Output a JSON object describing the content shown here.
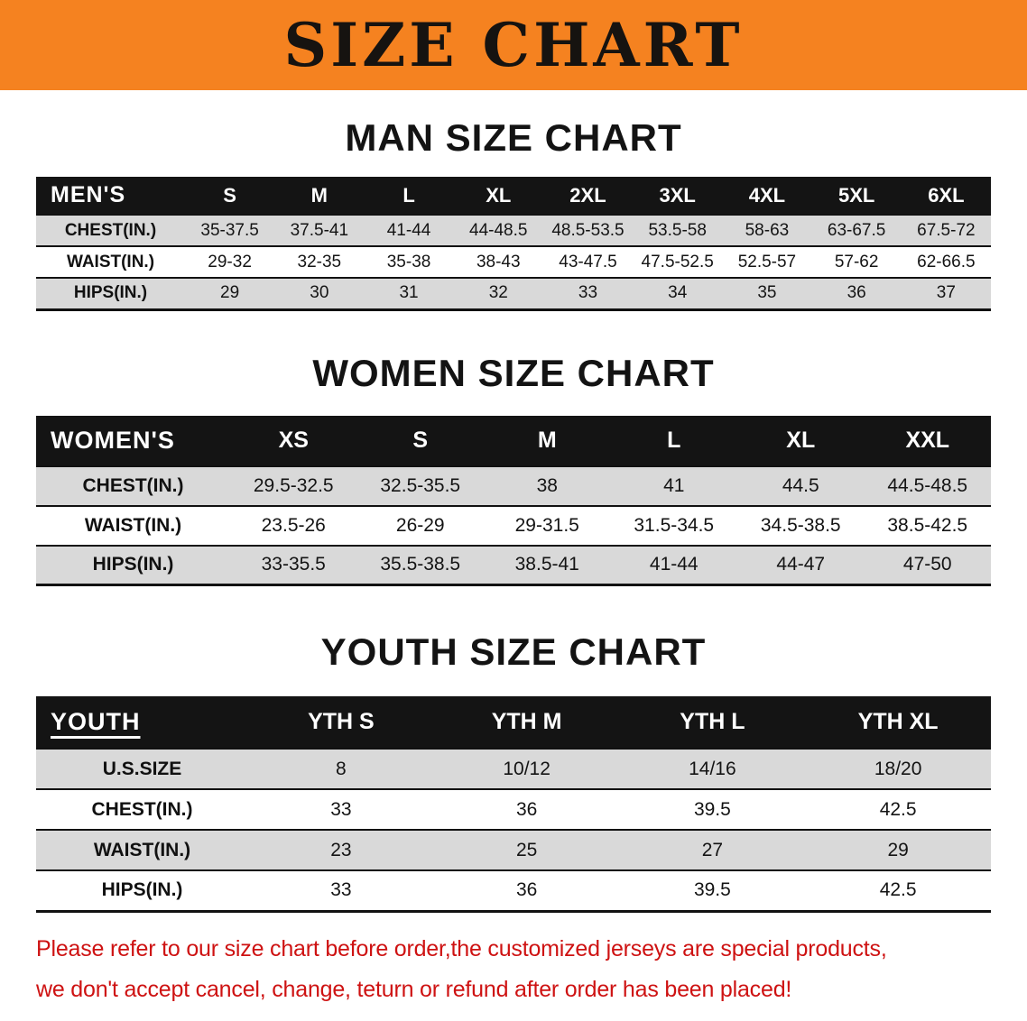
{
  "banner": {
    "title": "SIZE CHART"
  },
  "men": {
    "heading": "MAN SIZE CHART",
    "table": {
      "header": [
        "MEN'S",
        "S",
        "M",
        "L",
        "XL",
        "2XL",
        "3XL",
        "4XL",
        "5XL",
        "6XL"
      ],
      "rows": [
        [
          "CHEST(IN.)",
          "35-37.5",
          "37.5-41",
          "41-44",
          "44-48.5",
          "48.5-53.5",
          "53.5-58",
          "58-63",
          "63-67.5",
          "67.5-72"
        ],
        [
          "WAIST(IN.)",
          "29-32",
          "32-35",
          "35-38",
          "38-43",
          "43-47.5",
          "47.5-52.5",
          "52.5-57",
          "57-62",
          "62-66.5"
        ],
        [
          "HIPS(IN.)",
          "29",
          "30",
          "31",
          "32",
          "33",
          "34",
          "35",
          "36",
          "37"
        ]
      ]
    }
  },
  "women": {
    "heading": "WOMEN SIZE CHART",
    "table": {
      "header": [
        "WOMEN'S",
        "XS",
        "S",
        "M",
        "L",
        "XL",
        "XXL"
      ],
      "rows": [
        [
          "CHEST(IN.)",
          "29.5-32.5",
          "32.5-35.5",
          "38",
          "41",
          "44.5",
          "44.5-48.5"
        ],
        [
          "WAIST(IN.)",
          "23.5-26",
          "26-29",
          "29-31.5",
          "31.5-34.5",
          "34.5-38.5",
          "38.5-42.5"
        ],
        [
          "HIPS(IN.)",
          "33-35.5",
          "35.5-38.5",
          "38.5-41",
          "41-44",
          "44-47",
          "47-50"
        ]
      ]
    }
  },
  "youth": {
    "heading": "YOUTH SIZE CHART",
    "table": {
      "header": [
        "YOUTH",
        "YTH S",
        "YTH M",
        "YTH L",
        "YTH XL"
      ],
      "rows": [
        [
          "U.S.SIZE",
          "8",
          "10/12",
          "14/16",
          "18/20"
        ],
        [
          "CHEST(IN.)",
          "33",
          "36",
          "39.5",
          "42.5"
        ],
        [
          "WAIST(IN.)",
          "23",
          "25",
          "27",
          "29"
        ],
        [
          "HIPS(IN.)",
          "33",
          "36",
          "39.5",
          "42.5"
        ]
      ]
    }
  },
  "footer": {
    "line1": "Please refer to our size chart before order,the customized jerseys are special products,",
    "line2": "we don't accept cancel, change, teturn or refund after order has been placed!"
  },
  "colors": {
    "banner_bg": "#F58220",
    "header_bg": "#141414",
    "row_alt_bg": "#D9D9D9",
    "footer_text": "#CE1212"
  }
}
